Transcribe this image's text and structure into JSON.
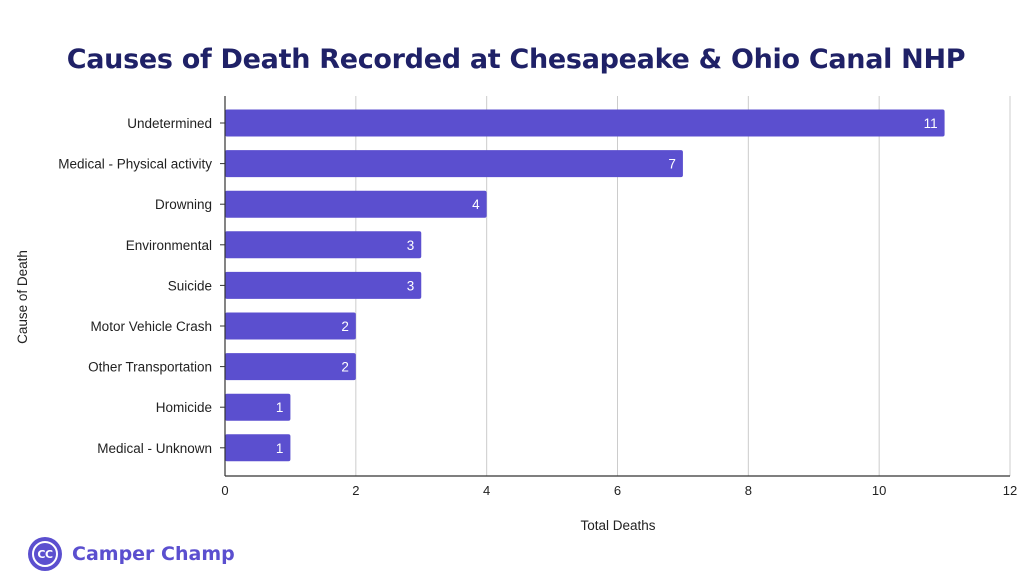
{
  "brand": {
    "name": "Camper Champ",
    "logo_text": "CC",
    "color": "#5b4fcf"
  },
  "chart_data": {
    "type": "bar",
    "orientation": "horizontal",
    "title": "Causes of Death Recorded at Chesapeake & Ohio Canal NHP",
    "xlabel": "Total Deaths",
    "ylabel": "Cause of Death",
    "categories": [
      "Undetermined",
      "Medical - Physical activity",
      "Drowning",
      "Environmental",
      "Suicide",
      "Motor Vehicle Crash",
      "Other Transportation",
      "Homicide",
      "Medical - Unknown"
    ],
    "values": [
      11,
      7,
      4,
      3,
      3,
      2,
      2,
      1,
      1
    ],
    "xlim": [
      0,
      12
    ],
    "xticks": [
      "0",
      "2",
      "4",
      "6",
      "8",
      "10",
      "12"
    ],
    "grid": "vertical",
    "bar_color": "#5b4fcf",
    "title_color": "#1f2167",
    "data_labels": true
  }
}
